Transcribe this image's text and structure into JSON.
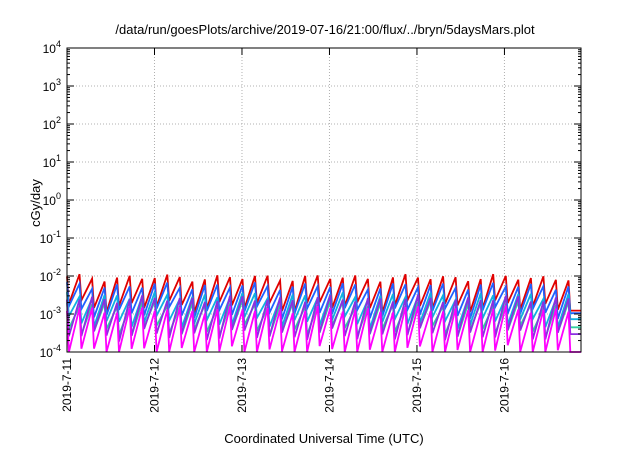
{
  "chart_data": {
    "type": "line",
    "title": "/data/run/goesPlots/archive/2019-07-16/21:00/flux/../bryn/5daysMars.plot",
    "xlabel": "Coordinated Universal Time (UTC)",
    "ylabel": "cGy/day",
    "y_scale": "log",
    "ylim": [
      0.0001,
      10000
    ],
    "y_ticks": [
      {
        "base": "10",
        "exp": "-4",
        "value": 0.0001
      },
      {
        "base": "10",
        "exp": "-3",
        "value": 0.001
      },
      {
        "base": "10",
        "exp": "-2",
        "value": 0.01
      },
      {
        "base": "10",
        "exp": "-1",
        "value": 0.1
      },
      {
        "base": "10",
        "exp": "0",
        "value": 1
      },
      {
        "base": "10",
        "exp": "1",
        "value": 10
      },
      {
        "base": "10",
        "exp": "2",
        "value": 100
      },
      {
        "base": "10",
        "exp": "3",
        "value": 1000
      },
      {
        "base": "10",
        "exp": "4",
        "value": 10000
      }
    ],
    "x_start": "2019-07-11",
    "x_end": "2019-07-16 21:00",
    "x_tick_labels": [
      "2019-7-11",
      "2019-7-12",
      "2019-7-13",
      "2019-7-14",
      "2019-7-15",
      "2019-7-16"
    ],
    "grid": true,
    "legend": "none",
    "series_style": "sawtooth, about 7 cycles per day",
    "series": [
      {
        "color": "#e00000",
        "peak": 0.009,
        "trough": 0.0016
      },
      {
        "color": "#2060ff",
        "peak": 0.0055,
        "trough": 0.0011
      },
      {
        "color": "#10b0e0",
        "peak": 0.003,
        "trough": 0.0006
      },
      {
        "color": "#30d0a0",
        "peak": 0.0018,
        "trough": 0.00035
      },
      {
        "color": "#8a30e0",
        "peak": 0.0025,
        "trough": 0.00028
      },
      {
        "color": "#ff00ff",
        "peak": 0.0013,
        "trough": 0.0001
      }
    ]
  }
}
